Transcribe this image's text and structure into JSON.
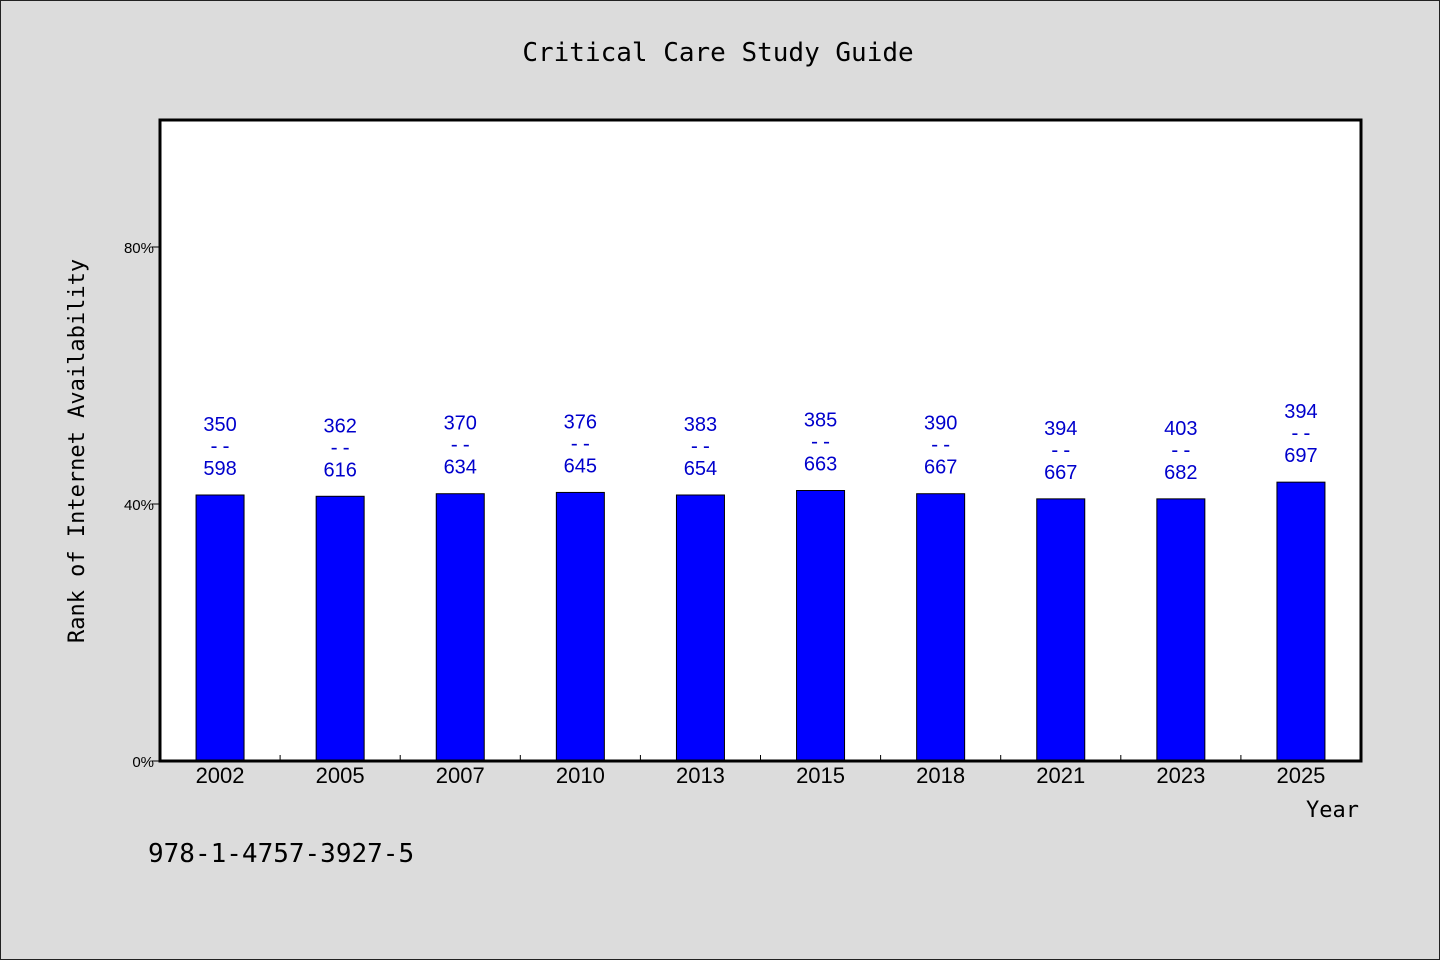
{
  "chart_data": {
    "type": "bar",
    "title": "Critical Care Study Guide",
    "xlabel": "Year",
    "ylabel": "Rank of Internet Availability",
    "footnote": "978-1-4757-3927-5",
    "categories": [
      "2002",
      "2005",
      "2007",
      "2010",
      "2013",
      "2015",
      "2018",
      "2021",
      "2023",
      "2025"
    ],
    "values": [
      41.4,
      41.2,
      41.6,
      41.8,
      41.4,
      42.1,
      41.6,
      40.8,
      40.8,
      43.4
    ],
    "bar_labels": [
      {
        "top": "350",
        "sep": "--",
        "bottom": "598"
      },
      {
        "top": "362",
        "sep": "--",
        "bottom": "616"
      },
      {
        "top": "370",
        "sep": "--",
        "bottom": "634"
      },
      {
        "top": "376",
        "sep": "--",
        "bottom": "645"
      },
      {
        "top": "383",
        "sep": "--",
        "bottom": "654"
      },
      {
        "top": "385",
        "sep": "--",
        "bottom": "663"
      },
      {
        "top": "390",
        "sep": "--",
        "bottom": "667"
      },
      {
        "top": "394",
        "sep": "--",
        "bottom": "667"
      },
      {
        "top": "403",
        "sep": "--",
        "bottom": "682"
      },
      {
        "top": "394",
        "sep": "--",
        "bottom": "697"
      }
    ],
    "yticks": [
      0,
      40,
      80
    ],
    "ytick_labels": [
      "0%",
      "40%",
      "80%"
    ],
    "ylim": [
      0,
      100
    ],
    "grid": false,
    "legend": "none",
    "colors": {
      "bar": "#0000ff",
      "label": "#0000cc",
      "background": "#dcdcdc",
      "plot": "#ffffff"
    }
  }
}
